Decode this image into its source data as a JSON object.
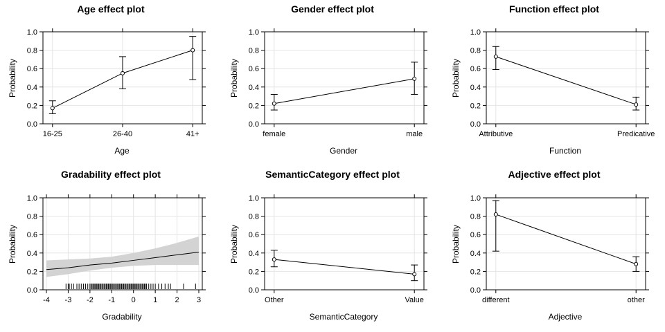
{
  "chart_data": [
    {
      "type": "line",
      "title": "Age effect plot",
      "xlabel": "Age",
      "ylabel": "Probability",
      "ylim": [
        0,
        1
      ],
      "yticks": [
        "0.0",
        "0.2",
        "0.4",
        "0.6",
        "0.8",
        "1.0"
      ],
      "grid": true,
      "categories": [
        "16-25",
        "26-40",
        "41+"
      ],
      "values": [
        0.17,
        0.55,
        0.8
      ],
      "lower": [
        0.11,
        0.38,
        0.48
      ],
      "upper": [
        0.25,
        0.73,
        0.95
      ]
    },
    {
      "type": "line",
      "title": "Gender effect plot",
      "xlabel": "Gender",
      "ylabel": "Probability",
      "ylim": [
        0,
        1
      ],
      "yticks": [
        "0.0",
        "0.2",
        "0.4",
        "0.6",
        "0.8",
        "1.0"
      ],
      "grid": true,
      "categories": [
        "female",
        "male"
      ],
      "values": [
        0.22,
        0.49
      ],
      "lower": [
        0.15,
        0.32
      ],
      "upper": [
        0.32,
        0.67
      ]
    },
    {
      "type": "line",
      "title": "Function effect plot",
      "xlabel": "Function",
      "ylabel": "Probability",
      "ylim": [
        0,
        1
      ],
      "yticks": [
        "0.0",
        "0.2",
        "0.4",
        "0.6",
        "0.8",
        "1.0"
      ],
      "grid": true,
      "categories": [
        "Attributive",
        "Predicative"
      ],
      "values": [
        0.73,
        0.21
      ],
      "lower": [
        0.59,
        0.15
      ],
      "upper": [
        0.84,
        0.29
      ]
    },
    {
      "type": "area",
      "title": "Gradability effect plot",
      "xlabel": "Gradability",
      "ylabel": "Probability",
      "ylim": [
        0,
        1
      ],
      "xlim": [
        -4,
        3
      ],
      "yticks": [
        "0.0",
        "0.2",
        "0.4",
        "0.6",
        "0.8",
        "1.0"
      ],
      "xticks": [
        "-4",
        "-3",
        "-2",
        "-1",
        "0",
        "1",
        "2",
        "3"
      ],
      "grid": true,
      "x": [
        -4,
        -3,
        -2,
        -1,
        0,
        1,
        2,
        3
      ],
      "values": [
        0.22,
        0.24,
        0.27,
        0.29,
        0.32,
        0.35,
        0.38,
        0.41
      ],
      "lower": [
        0.14,
        0.17,
        0.21,
        0.24,
        0.26,
        0.27,
        0.27,
        0.27
      ],
      "upper": [
        0.32,
        0.33,
        0.34,
        0.36,
        0.4,
        0.45,
        0.51,
        0.58
      ],
      "rug": [
        -3.1,
        -3.0,
        -2.95,
        -2.85,
        -2.75,
        -2.6,
        -2.5,
        -2.4,
        -2.3,
        -2.2,
        -2.1,
        -2.0,
        -1.95,
        -1.9,
        -1.85,
        -1.8,
        -1.75,
        -1.7,
        -1.65,
        -1.6,
        -1.55,
        -1.5,
        -1.45,
        -1.4,
        -1.35,
        -1.3,
        -1.25,
        -1.2,
        -1.15,
        -1.1,
        -1.05,
        -1.0,
        -0.95,
        -0.9,
        -0.85,
        -0.8,
        -0.75,
        -0.7,
        -0.65,
        -0.6,
        -0.55,
        -0.5,
        -0.45,
        -0.4,
        -0.35,
        -0.3,
        -0.25,
        -0.2,
        -0.15,
        -0.1,
        -0.05,
        0.0,
        0.05,
        0.1,
        0.15,
        0.2,
        0.25,
        0.3,
        0.35,
        0.4,
        0.45,
        0.5,
        0.55,
        0.6,
        0.7,
        0.8,
        0.9,
        1.0,
        1.15,
        1.3,
        1.45,
        1.6,
        1.7,
        2.3,
        2.85
      ]
    },
    {
      "type": "line",
      "title": "SemanticCategory effect plot",
      "xlabel": "SemanticCategory",
      "ylabel": "Probability",
      "ylim": [
        0,
        1
      ],
      "yticks": [
        "0.0",
        "0.2",
        "0.4",
        "0.6",
        "0.8",
        "1.0"
      ],
      "grid": true,
      "categories": [
        "Other",
        "Value"
      ],
      "values": [
        0.33,
        0.17
      ],
      "lower": [
        0.25,
        0.1
      ],
      "upper": [
        0.43,
        0.27
      ]
    },
    {
      "type": "line",
      "title": "Adjective effect plot",
      "xlabel": "Adjective",
      "ylabel": "Probability",
      "ylim": [
        0,
        1
      ],
      "yticks": [
        "0.0",
        "0.2",
        "0.4",
        "0.6",
        "0.8",
        "1.0"
      ],
      "grid": true,
      "categories": [
        "different",
        "other"
      ],
      "values": [
        0.82,
        0.28
      ],
      "lower": [
        0.42,
        0.2
      ],
      "upper": [
        0.97,
        0.36
      ]
    }
  ]
}
